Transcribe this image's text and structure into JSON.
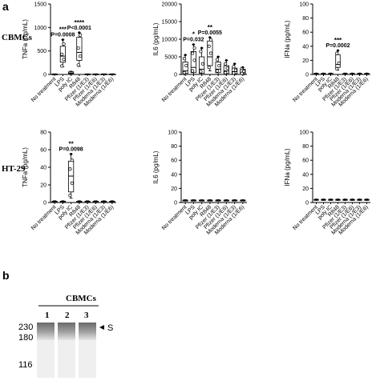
{
  "panels": {
    "a": "a",
    "b": "b"
  },
  "rows": {
    "cbmc": "CBMCs",
    "ht29": "HT-29"
  },
  "categories": [
    "No treatment",
    "LPS",
    "poly IC",
    "R848",
    "Pfizer (1/E3)",
    "Pfizer (1/E6)",
    "Moderna (1/E3)",
    "Moderna (1/E6)"
  ],
  "chart_data": [
    {
      "type": "box",
      "row": "CBMCs",
      "ylabel": "TNFa (pg/mL)",
      "ylim": [
        0,
        1500
      ],
      "yticks": [
        0,
        500,
        1000,
        1500
      ],
      "categories": [
        "No treatment",
        "LPS",
        "poly IC",
        "R848",
        "Pfizer (1/E3)",
        "Pfizer (1/E6)",
        "Moderna (1/E3)",
        "Moderna (1/E6)"
      ],
      "boxes": [
        {
          "min": 5,
          "q1": 7,
          "median": 9,
          "q3": 11,
          "max": 13
        },
        {
          "min": 160,
          "q1": 260,
          "median": 390,
          "q3": 600,
          "max": 740,
          "points": [
            180,
            320,
            430,
            650
          ]
        },
        {
          "min": 10,
          "q1": 20,
          "median": 30,
          "q3": 55,
          "max": 70
        },
        {
          "min": 170,
          "q1": 300,
          "median": 470,
          "q3": 790,
          "max": 890,
          "points": [
            200,
            390,
            560,
            840
          ]
        },
        {
          "min": 5,
          "q1": 7,
          "median": 9,
          "q3": 11,
          "max": 13
        },
        {
          "min": 5,
          "q1": 7,
          "median": 9,
          "q3": 11,
          "max": 13
        },
        {
          "min": 5,
          "q1": 7,
          "median": 9,
          "q3": 11,
          "max": 13
        },
        {
          "min": 5,
          "q1": 7,
          "median": 9,
          "q3": 11,
          "max": 13
        }
      ],
      "annotations": [
        {
          "category": 1,
          "stars": "***",
          "pvalue": "P=0.0008"
        },
        {
          "category": 3,
          "stars": "****",
          "pvalue": "P<0.0001"
        }
      ]
    },
    {
      "type": "box",
      "row": "CBMCs",
      "ylabel": "IL6 (pg/mL)",
      "ylim": [
        0,
        20000
      ],
      "yticks": [
        0,
        5000,
        10000,
        15000,
        20000
      ],
      "categories": [
        "No treatment",
        "LPS",
        "poly IC",
        "R848",
        "Pfizer (1/E3)",
        "Pfizer (1/E6)",
        "Moderna (1/E3)",
        "Moderna (1/E6)"
      ],
      "boxes": [
        {
          "min": 0,
          "q1": 300,
          "median": 1000,
          "q3": 3500,
          "max": 5500,
          "points": [
            500,
            2500,
            4500
          ]
        },
        {
          "min": 0,
          "q1": 500,
          "median": 2000,
          "q3": 6500,
          "max": 8500,
          "points": [
            1000,
            4000,
            6000,
            7500
          ]
        },
        {
          "min": 0,
          "q1": 300,
          "median": 1500,
          "q3": 5000,
          "max": 7500,
          "points": [
            800,
            3000,
            6500
          ]
        },
        {
          "min": 1000,
          "q1": 2500,
          "median": 5000,
          "q3": 9500,
          "max": 10500,
          "points": [
            2000,
            6000,
            8000,
            9800
          ]
        },
        {
          "min": 0,
          "q1": 500,
          "median": 1500,
          "q3": 3500,
          "max": 5000,
          "points": [
            1000,
            2500,
            4200
          ]
        },
        {
          "min": 0,
          "q1": 300,
          "median": 1000,
          "q3": 2500,
          "max": 4000,
          "points": [
            500,
            1800,
            3000
          ]
        },
        {
          "min": 0,
          "q1": 200,
          "median": 800,
          "q3": 1800,
          "max": 3000,
          "points": [
            400,
            1200,
            2200
          ]
        },
        {
          "min": 0,
          "q1": 200,
          "median": 600,
          "q3": 1500,
          "max": 2000,
          "points": [
            300,
            900,
            1700
          ]
        }
      ],
      "annotations": [
        {
          "category": 1,
          "stars": "*",
          "pvalue": "P=0.032"
        },
        {
          "category": 3,
          "stars": "**",
          "pvalue": "P=0.0055"
        }
      ]
    },
    {
      "type": "box",
      "row": "CBMCs",
      "ylabel": "IFNa (pg/mL)",
      "ylim": [
        0,
        100
      ],
      "yticks": [
        0,
        20,
        40,
        60,
        80,
        100
      ],
      "categories": [
        "No treatment",
        "LPS",
        "poly IC",
        "R848",
        "Pfizer (1/E3)",
        "Pfizer (1/E6)",
        "Moderna (1/E3)",
        "Moderna (1/E6)"
      ],
      "boxes": [
        {
          "min": 0.5,
          "q1": 0.8,
          "median": 1,
          "q3": 1.5,
          "max": 2
        },
        {
          "min": 0.5,
          "q1": 0.8,
          "median": 1,
          "q3": 1.5,
          "max": 2
        },
        {
          "min": 0.5,
          "q1": 0.8,
          "median": 1,
          "q3": 1.5,
          "max": 2
        },
        {
          "min": 6,
          "q1": 10,
          "median": 14,
          "q3": 28,
          "max": 34,
          "points": [
            8,
            16,
            30
          ]
        },
        {
          "min": 0.5,
          "q1": 0.8,
          "median": 1,
          "q3": 1.5,
          "max": 2
        },
        {
          "min": 0.5,
          "q1": 0.8,
          "median": 1,
          "q3": 1.5,
          "max": 2
        },
        {
          "min": 0.5,
          "q1": 0.8,
          "median": 1,
          "q3": 1.5,
          "max": 2
        },
        {
          "min": 0.5,
          "q1": 0.8,
          "median": 1,
          "q3": 1.5,
          "max": 2
        }
      ],
      "annotations": [
        {
          "category": 3,
          "stars": "***",
          "pvalue": "P=0.0002"
        }
      ]
    },
    {
      "type": "box",
      "row": "HT-29",
      "ylabel": "TNFa (pg/mL)",
      "ylim": [
        0,
        80
      ],
      "yticks": [
        0,
        20,
        40,
        60,
        80
      ],
      "categories": [
        "No treatment",
        "LPS",
        "poly IC",
        "R848",
        "Pfizer (1/E3)",
        "Pfizer (1/E6)",
        "Moderna (1/E3)",
        "Moderna (1/E6)"
      ],
      "boxes": [
        {
          "min": 0.5,
          "q1": 0.8,
          "median": 1,
          "q3": 1.5,
          "max": 2
        },
        {
          "min": 0.5,
          "q1": 0.8,
          "median": 1,
          "q3": 1.5,
          "max": 2
        },
        {
          "min": 5,
          "q1": 12,
          "median": 30,
          "q3": 47,
          "max": 55,
          "points": [
            8,
            22,
            38,
            48
          ]
        },
        {
          "min": 0.5,
          "q1": 0.8,
          "median": 1,
          "q3": 1.5,
          "max": 2
        },
        {
          "min": 0.5,
          "q1": 0.8,
          "median": 1,
          "q3": 1.5,
          "max": 2
        },
        {
          "min": 0.5,
          "q1": 0.8,
          "median": 1,
          "q3": 1.5,
          "max": 2
        },
        {
          "min": 0.5,
          "q1": 0.8,
          "median": 1,
          "q3": 1.5,
          "max": 2
        },
        {
          "min": 0.5,
          "q1": 0.8,
          "median": 1,
          "q3": 1.5,
          "max": 2
        }
      ],
      "annotations": [
        {
          "category": 2,
          "stars": "**",
          "pvalue": "P=0.0098"
        }
      ]
    },
    {
      "type": "box",
      "row": "HT-29",
      "ylabel": "IL6 (pg/mL)",
      "ylim": [
        0,
        100
      ],
      "yticks": [
        0,
        20,
        40,
        60,
        80,
        100
      ],
      "categories": [
        "No treatment",
        "LPS",
        "poly IC",
        "R848",
        "Pfizer (1/E3)",
        "Pfizer (1/E6)",
        "Moderna (1/E3)",
        "Moderna (1/E6)"
      ],
      "boxes": [
        {
          "min": 2,
          "q1": 2.5,
          "median": 3,
          "q3": 3.5,
          "max": 4
        },
        {
          "min": 2,
          "q1": 2.5,
          "median": 3,
          "q3": 3.5,
          "max": 4
        },
        {
          "min": 2,
          "q1": 2.5,
          "median": 3,
          "q3": 3.5,
          "max": 4
        },
        {
          "min": 2,
          "q1": 2.5,
          "median": 3,
          "q3": 3.5,
          "max": 4
        },
        {
          "min": 2,
          "q1": 2.5,
          "median": 3,
          "q3": 3.5,
          "max": 4
        },
        {
          "min": 2,
          "q1": 2.5,
          "median": 3,
          "q3": 3.5,
          "max": 4
        },
        {
          "min": 2,
          "q1": 2.5,
          "median": 3,
          "q3": 3.5,
          "max": 4
        },
        {
          "min": 2,
          "q1": 2.5,
          "median": 3,
          "q3": 3.5,
          "max": 4
        }
      ],
      "annotations": []
    },
    {
      "type": "box",
      "row": "HT-29",
      "ylabel": "IFNa (pg/mL)",
      "ylim": [
        0,
        100
      ],
      "yticks": [
        0,
        20,
        40,
        60,
        80,
        100
      ],
      "categories": [
        "No treatment",
        "LPS",
        "poly IC",
        "R848",
        "Pfizer (1/E3)",
        "Pfizer (1/E6)",
        "Moderna (1/E3)",
        "Moderna (1/E6)"
      ],
      "boxes": [
        {
          "min": 3,
          "q1": 3.5,
          "median": 4,
          "q3": 4.5,
          "max": 5
        },
        {
          "min": 3,
          "q1": 3.5,
          "median": 4,
          "q3": 4.5,
          "max": 5
        },
        {
          "min": 3,
          "q1": 3.5,
          "median": 4,
          "q3": 4.5,
          "max": 5
        },
        {
          "min": 3,
          "q1": 3.5,
          "median": 4,
          "q3": 4.5,
          "max": 5
        },
        {
          "min": 3,
          "q1": 3.5,
          "median": 4,
          "q3": 4.5,
          "max": 5
        },
        {
          "min": 3,
          "q1": 3.5,
          "median": 4,
          "q3": 4.5,
          "max": 5
        },
        {
          "min": 3,
          "q1": 3.5,
          "median": 4,
          "q3": 4.5,
          "max": 5
        },
        {
          "min": 3,
          "q1": 3.5,
          "median": 4,
          "q3": 4.5,
          "max": 5
        }
      ],
      "annotations": []
    }
  ],
  "gel": {
    "title": "CBMCs",
    "lanes": [
      "1",
      "2",
      "3"
    ],
    "markers": [
      "230",
      "180",
      "116"
    ],
    "band_label": "S"
  }
}
